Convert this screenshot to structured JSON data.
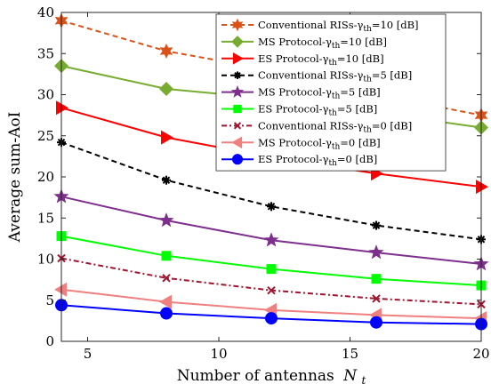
{
  "chart_data": {
    "type": "line",
    "xlabel": "Number of antennas",
    "xlabel_symbol": "N",
    "xlabel_subscript": "t",
    "ylabel": "Average sum-AoI",
    "xlim": [
      4,
      20
    ],
    "ylim": [
      0,
      40
    ],
    "xticks": [
      5,
      10,
      15,
      20
    ],
    "yticks": [
      0,
      5,
      10,
      15,
      20,
      25,
      30,
      35,
      40
    ],
    "grid": false,
    "legend_position": "top-right",
    "x": [
      4,
      8,
      12,
      16,
      20
    ],
    "series": [
      {
        "name": "Conventional RISs-γth=10 [dB]",
        "legend_main": "Conventional RISs-γ",
        "legend_sub": "th",
        "legend_tail": "=10 [dB]",
        "color": "#D95319",
        "marker": "hexagram",
        "dash": "6,4",
        "values": [
          39.0,
          35.3,
          33.0,
          30.0,
          27.5
        ]
      },
      {
        "name": "MS Protocol-γth=10 [dB]",
        "legend_main": "MS Protocol-γ",
        "legend_sub": "th",
        "legend_tail": "=10 [dB]",
        "color": "#77AC30",
        "marker": "diamond",
        "dash": "",
        "values": [
          33.5,
          30.7,
          29.5,
          27.8,
          26.0
        ]
      },
      {
        "name": "ES Protocol-γth=10 [dB]",
        "legend_main": "ES Protocol-γ",
        "legend_sub": "th",
        "legend_tail": "=10 [dB]",
        "color": "#FF0000",
        "marker": "triangle-right",
        "dash": "",
        "values": [
          28.4,
          24.8,
          22.4,
          20.4,
          18.8
        ]
      },
      {
        "name": "Conventional RISs-γth=5 [dB]",
        "legend_main": "Conventional RISs-γ",
        "legend_sub": "th",
        "legend_tail": "=5 [dB]",
        "color": "#000000",
        "marker": "asterisk",
        "dash": "6,4",
        "values": [
          24.2,
          19.6,
          16.4,
          14.1,
          12.4
        ]
      },
      {
        "name": "MS Protocol-γth=5 [dB]",
        "legend_main": "MS Protocol-γ",
        "legend_sub": "th",
        "legend_tail": "=5 [dB]",
        "color": "#7E2F8E",
        "marker": "pentagram",
        "dash": "",
        "values": [
          17.6,
          14.7,
          12.3,
          10.8,
          9.4
        ]
      },
      {
        "name": "ES Protocol-γth=5 [dB]",
        "legend_main": "ES Protocol-γ",
        "legend_sub": "th",
        "legend_tail": "=5 [dB]",
        "color": "#00FF00",
        "marker": "square",
        "dash": "",
        "values": [
          12.8,
          10.4,
          8.8,
          7.6,
          6.8
        ]
      },
      {
        "name": "Conventional RISs-γth=0 [dB]",
        "legend_main": "Conventional RISs-γ",
        "legend_sub": "th",
        "legend_tail": "=0 [dB]",
        "color": "#A2142F",
        "marker": "x",
        "dash": "6,3,2,3",
        "values": [
          10.1,
          7.7,
          6.2,
          5.2,
          4.5
        ]
      },
      {
        "name": "MS Protocol-γth=0 [dB]",
        "legend_main": "MS Protocol-γ",
        "legend_sub": "th",
        "legend_tail": "=0 [dB]",
        "color": "#F08080",
        "marker": "triangle-left",
        "dash": "",
        "values": [
          6.3,
          4.8,
          3.8,
          3.2,
          2.8
        ]
      },
      {
        "name": "ES Protocol-γth=0 [dB]",
        "legend_main": "ES Protocol-γ",
        "legend_sub": "th",
        "legend_tail": "=0 [dB]",
        "color": "#0000FF",
        "marker": "circle",
        "dash": "",
        "values": [
          4.4,
          3.4,
          2.8,
          2.3,
          2.1
        ]
      }
    ]
  }
}
